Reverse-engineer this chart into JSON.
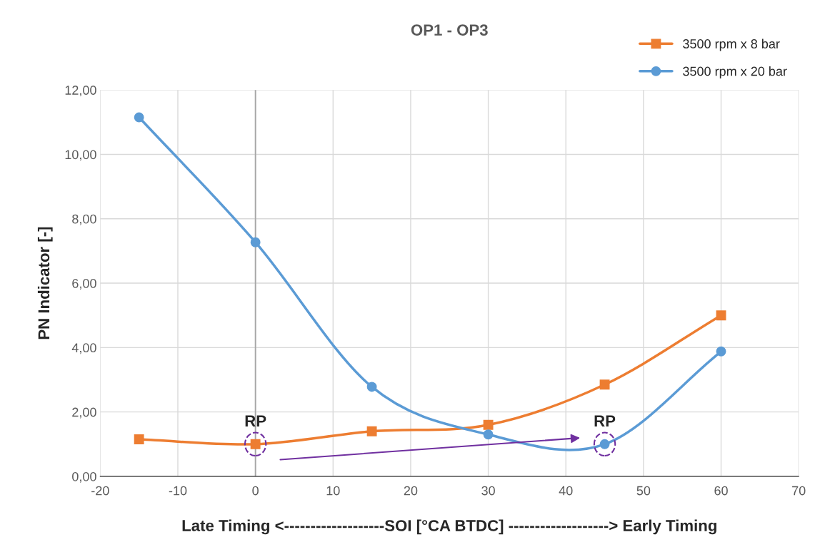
{
  "chart_data": {
    "type": "line",
    "title": "OP1 - OP3",
    "xlabel": "Late Timing <-------------------SOI [°CA BTDC] -------------------> Early Timing",
    "ylabel": "PN Indicator [-]",
    "series": [
      {
        "name": "3500 rpm x 8 bar",
        "color": "#ed7d31",
        "marker": "square",
        "x": [
          -15,
          0,
          15,
          30,
          45,
          60
        ],
        "values": [
          1.15,
          1.0,
          1.4,
          1.6,
          2.85,
          5.0
        ]
      },
      {
        "name": "3500 rpm x 20 bar",
        "color": "#5b9bd5",
        "marker": "circle",
        "x": [
          -15,
          0,
          15,
          30,
          45,
          60
        ],
        "values": [
          11.15,
          7.27,
          2.78,
          1.3,
          1.0,
          3.88
        ]
      }
    ],
    "xlim": [
      -20,
      70
    ],
    "xticks": [
      -20,
      -10,
      0,
      10,
      20,
      30,
      40,
      50,
      60,
      70
    ],
    "ylim": [
      0,
      12
    ],
    "yticks": [
      {
        "value": 0,
        "label": "0,00"
      },
      {
        "value": 2,
        "label": "2,00"
      },
      {
        "value": 4,
        "label": "4,00"
      },
      {
        "value": 6,
        "label": "6,00"
      },
      {
        "value": 8,
        "label": "8,00"
      },
      {
        "value": 10,
        "label": "10,00"
      },
      {
        "value": 12,
        "label": "12,00"
      }
    ],
    "ref_lines": [
      {
        "axis": "x",
        "value": 0,
        "color": "#a6a6a6"
      }
    ],
    "annotations": [
      {
        "text": "RP",
        "x": 0,
        "y": 1.0
      },
      {
        "text": "RP",
        "x": 45,
        "y": 1.0
      }
    ],
    "grid": true,
    "legend": "top right",
    "line_style": "solid"
  }
}
